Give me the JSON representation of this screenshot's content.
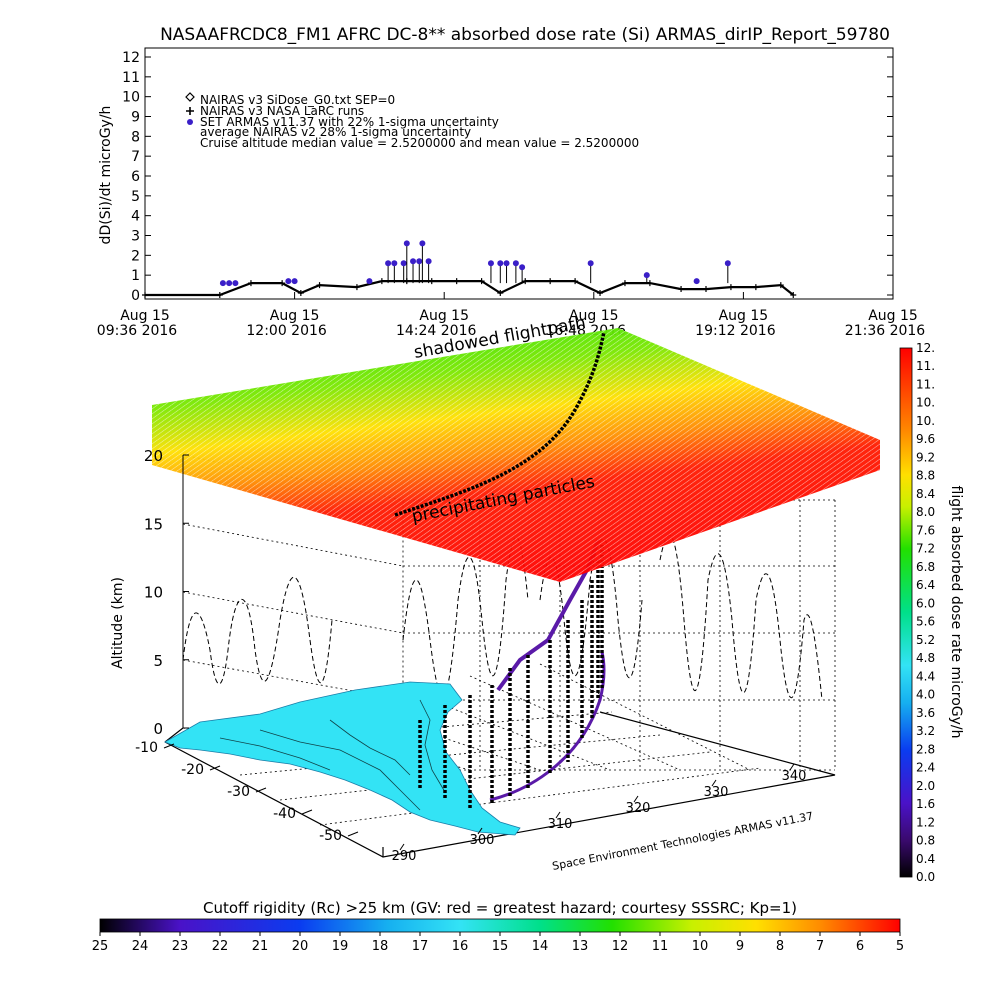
{
  "chart_data": [
    {
      "type": "line",
      "title": "NASAAFRCDC8_FM1 AFRC DC-8** absorbed dose rate (Si) ARMAS_dirIP_Report_59780",
      "ylabel": "dD(Si)/dt microGy/h",
      "ylim": [
        0,
        12
      ],
      "yticks": [
        "0",
        "1",
        "2",
        "3",
        "4",
        "5",
        "6",
        "7",
        "8",
        "9",
        "10",
        "11",
        "12"
      ],
      "xticks": [
        {
          "date": "Aug 15",
          "time": "09:36 2016"
        },
        {
          "date": "Aug 15",
          "time": "12:00 2016"
        },
        {
          "date": "Aug 15",
          "time": "14:24 2016"
        },
        {
          "date": "Aug 15",
          "time": "16:48 2016"
        },
        {
          "date": "Aug 15",
          "time": "19:12 2016"
        },
        {
          "date": "Aug 15",
          "time": "21:36 2016"
        }
      ],
      "legend": [
        "NAIRAS v3 SiDose_G0.txt SEP=0",
        "NAIRAS v3 NASA LaRC runs",
        "SET ARMAS v11.37 with 22% 1-sigma uncertainty",
        "average NAIRAS v2 28% 1-sigma uncertainty",
        "Cruise altitude median value = 2.5200000 and mean value = 2.5200000"
      ],
      "legend_position": "top-left",
      "series": [
        {
          "name": "NAIRAS v3 SiDose_G0.txt SEP=0",
          "x_hours": [
            9.6,
            10.8,
            11.3,
            11.8,
            12.1,
            12.4,
            13.0,
            13.4,
            13.8,
            14.2,
            14.6,
            15.0,
            15.3,
            15.7,
            16.1,
            16.5,
            16.9,
            17.3,
            17.7,
            18.2,
            18.6,
            19.0,
            19.4,
            19.8,
            20.0
          ],
          "values": [
            0,
            0,
            0.6,
            0.6,
            0.1,
            0.5,
            0.4,
            0.7,
            0.7,
            0.7,
            0.7,
            0.7,
            0.1,
            0.7,
            0.7,
            0.7,
            0.1,
            0.6,
            0.6,
            0.3,
            0.3,
            0.4,
            0.4,
            0.5,
            0
          ]
        },
        {
          "name": "SET ARMAS v11.37 with 22% 1-sigma uncertainty",
          "color": "#3a1fc8",
          "x_hours": [
            10.85,
            10.95,
            11.05,
            11.9,
            12.0,
            13.2,
            13.5,
            13.6,
            13.75,
            13.8,
            13.9,
            14.0,
            14.05,
            14.15,
            15.15,
            15.3,
            15.4,
            15.55,
            15.65,
            16.75,
            17.65,
            18.45,
            18.95
          ],
          "values": [
            0.6,
            0.6,
            0.6,
            0.7,
            0.7,
            0.7,
            1.6,
            1.6,
            1.6,
            2.6,
            1.7,
            1.7,
            2.6,
            1.7,
            1.6,
            1.6,
            1.6,
            1.6,
            1.4,
            1.6,
            1.0,
            0.7,
            1.6
          ]
        }
      ]
    },
    {
      "type": "scatter",
      "annotations": [
        "shadowed flightpath",
        "precipitating particles"
      ],
      "zlabel": "Altitude (km)",
      "zticks": [
        "0",
        "5",
        "10",
        "15",
        "20"
      ],
      "yticks": [
        "-10",
        "-20",
        "-30",
        "-40",
        "-50"
      ],
      "xticks": [
        "290",
        "300",
        "310",
        "320",
        "330",
        "340"
      ],
      "footer_credit": "Space Environment Technologies ARMAS v11.37",
      "dose_colorbar": {
        "label": "flight absorbed dose rate microGy/h",
        "ticks": [
          "0.0",
          "0.4",
          "0.8",
          "1.2",
          "1.6",
          "2.0",
          "2.4",
          "2.8",
          "3.2",
          "3.6",
          "4.0",
          "4.4",
          "4.8",
          "5.2",
          "5.6",
          "6.0",
          "6.4",
          "6.8",
          "7.2",
          "7.6",
          "8.0",
          "8.4",
          "8.8",
          "9.2",
          "9.6",
          "10.",
          "10.",
          "11.",
          "11.",
          "12."
        ]
      },
      "rigidity_colorbar": {
        "label": "Cutoff rigidity (Rc) >25 km (GV: red = greatest hazard; courtesy SSSRC; Kp=1)",
        "ticks": [
          "25",
          "24",
          "23",
          "22",
          "21",
          "20",
          "19",
          "18",
          "17",
          "16",
          "15",
          "14",
          "13",
          "12",
          "11",
          "10",
          "9",
          "8",
          "7",
          "6",
          "5"
        ]
      },
      "colors": {
        "land": "#33e3f5",
        "flight_track": "#5a1aa8",
        "rigidity_low": "#00cc33",
        "rigidity_high": "#ff0000"
      }
    }
  ]
}
